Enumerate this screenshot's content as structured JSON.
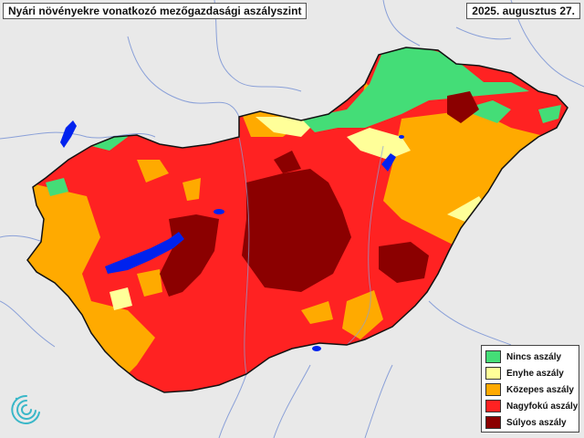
{
  "title": "Nyári növényekre vonatkozó mezőgazdasági aszályszint",
  "date": "2025. augusztus 27.",
  "legend": [
    {
      "label": "Nincs aszály",
      "color": "#44dd77"
    },
    {
      "label": "Enyhe aszály",
      "color": "#ffff99"
    },
    {
      "label": "Közepes aszály",
      "color": "#ffaa00"
    },
    {
      "label": "Nagyfokú aszály",
      "color": "#ff2222"
    },
    {
      "label": "Súlyos aszály",
      "color": "#8b0000"
    }
  ],
  "colors": {
    "background": "#e9e9e9",
    "water": "#0022ee",
    "border": "#111111",
    "rivers": "#8aa0d8",
    "logo": "#3ab7c8"
  },
  "icons": {
    "logo": "swirl-logo-icon"
  }
}
